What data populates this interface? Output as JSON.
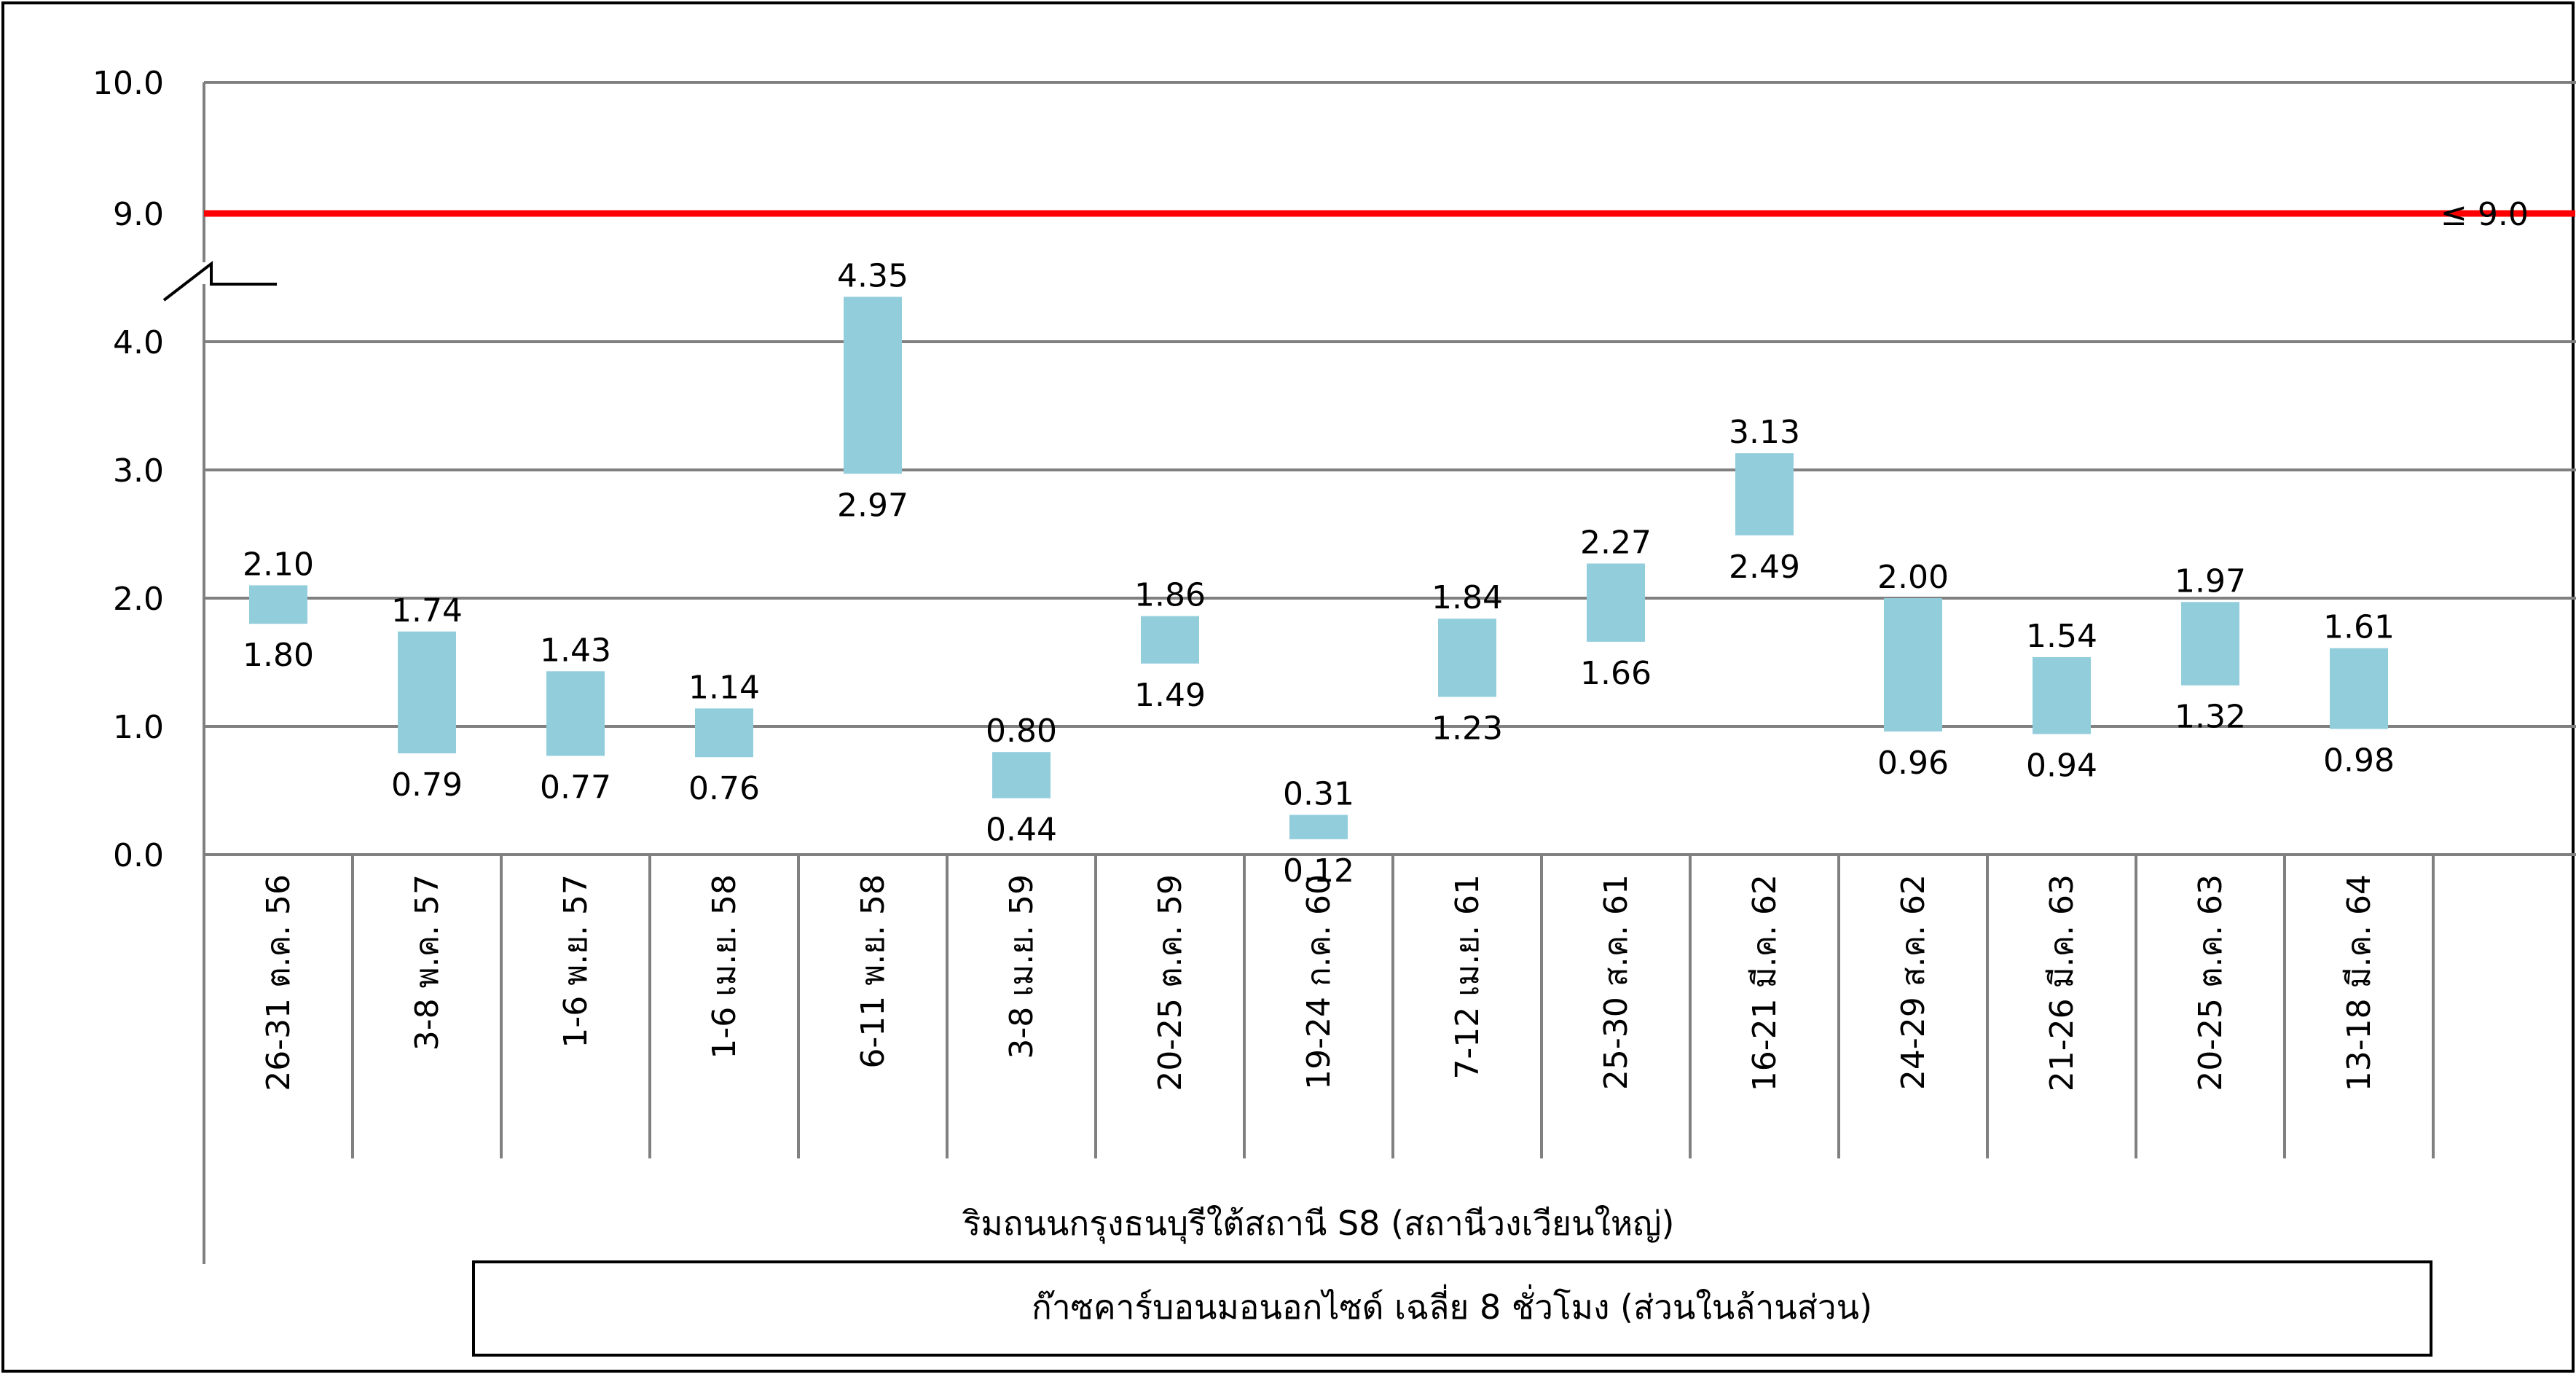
{
  "chart_data": {
    "type": "bar",
    "subtype": "floating-range",
    "title": "",
    "xlabel": "ริมถนนกรุงธนบุรีใต้สถานี S8 (สถานีวงเวียนใหญ่)",
    "legend_box": "ก๊าซคาร์บอนมอนอกไซด์ เฉลี่ย 8 ชั่วโมง (ส่วนในล้านส่วน)",
    "categories": [
      "26-31 ต.ค. 56",
      "3-8 พ.ค. 57",
      "1-6 พ.ย. 57",
      "1-6 เม.ย. 58",
      "6-11 พ.ย. 58",
      "3-8 เม.ย. 59",
      "20-25 ต.ค. 59",
      "19-24 ก.ค. 60",
      "7-12 เม.ย. 61",
      "25-30 ส.ค. 61",
      "16-21 มี.ค. 62",
      "24-29 ส.ค. 62",
      "21-26 มี.ค. 63",
      "20-25 ต.ค. 63",
      "13-18 มี.ค. 64"
    ],
    "series": [
      {
        "low": [
          "1.80",
          "0.79",
          "0.77",
          "0.76",
          "2.97",
          "0.44",
          "1.49",
          "0.12",
          "1.23",
          "1.66",
          "2.49",
          "0.96",
          "0.94",
          "1.32",
          "0.98"
        ],
        "high": [
          "2.10",
          "1.74",
          "1.43",
          "1.14",
          "4.35",
          "0.80",
          "1.86",
          "0.31",
          "1.84",
          "2.27",
          "3.13",
          "2.00",
          "1.54",
          "1.97",
          "1.61"
        ]
      }
    ],
    "yticks": [
      "0.0",
      "1.0",
      "2.0",
      "3.0",
      "4.0",
      "9.0",
      "10.0"
    ],
    "ylim": [
      0,
      10
    ],
    "axis_break": [
      4.6,
      8.6
    ],
    "grid": true,
    "standard_line": {
      "value": 9.0,
      "label": "≤ 9.0",
      "color": "#ff0000"
    },
    "bar_color": "#92cddc",
    "grid_color": "#808080"
  }
}
